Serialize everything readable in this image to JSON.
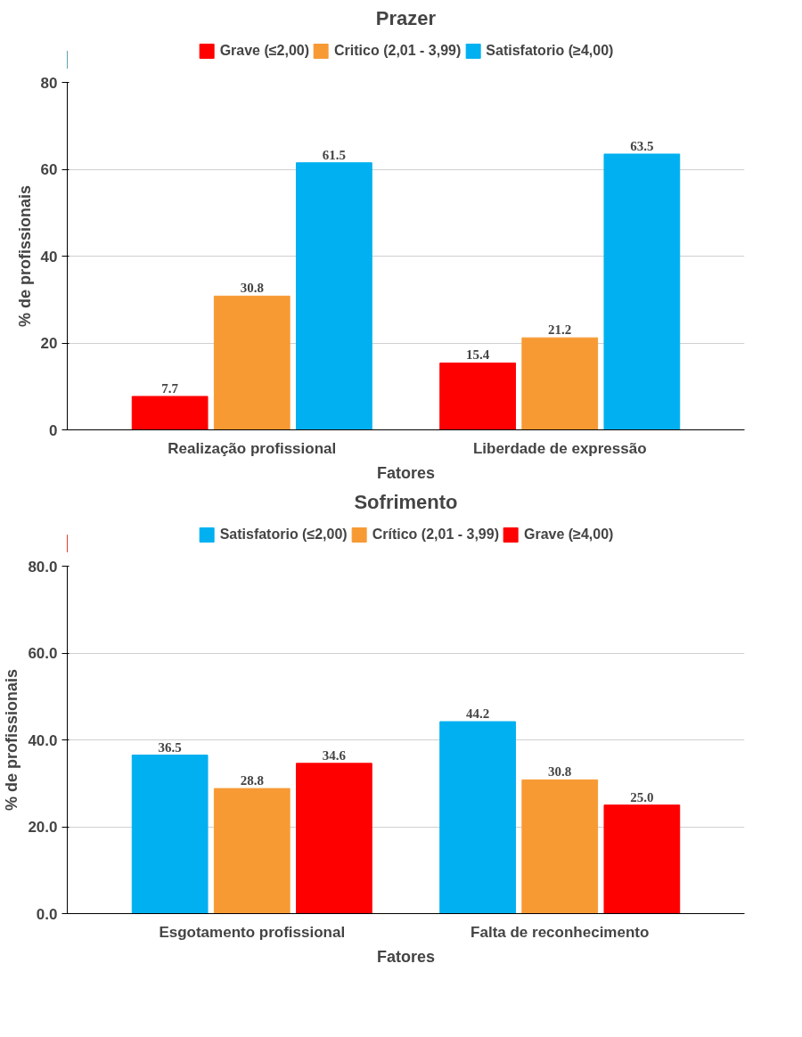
{
  "chart_data": [
    {
      "type": "bar",
      "title": "Prazer",
      "xlabel": "Fatores",
      "ylabel": "% de profissionais",
      "categories": [
        "Realização profissional",
        "Liberdade de expressão"
      ],
      "series": [
        {
          "name": "Grave (≤2,00)",
          "color": "#ff0000",
          "values": [
            7.7,
            15.4
          ]
        },
        {
          "name": "Critico (2,01 - 3,99)",
          "color": "#f79a34",
          "values": [
            30.8,
            21.2
          ]
        },
        {
          "name": "Satisfatorio (≥4,00)",
          "color": "#00b0f0",
          "values": [
            61.5,
            63.5
          ]
        }
      ],
      "ylim": [
        0,
        80
      ],
      "yticks": [
        0,
        20,
        40,
        60,
        80
      ],
      "grid": "y",
      "legend": "top",
      "data_labels": true
    },
    {
      "type": "bar",
      "title": "Sofrimento",
      "xlabel": "Fatores",
      "ylabel": "% de profissionais",
      "categories": [
        "Esgotamento profissional",
        "Falta de reconhecimento"
      ],
      "series": [
        {
          "name": "Satisfatorio (≤2,00)",
          "color": "#00b0f0",
          "values": [
            36.5,
            44.2
          ],
          "value_labels": [
            "36.5",
            "44.2"
          ]
        },
        {
          "name": "Crítico (2,01 - 3,99)",
          "color": "#f79a34",
          "values": [
            28.8,
            30.8
          ],
          "value_labels": [
            "28.8",
            "30.8"
          ]
        },
        {
          "name": "Grave (≥4,00)",
          "color": "#ff0000",
          "values": [
            34.6,
            25.0
          ],
          "value_labels": [
            "34.6",
            "25.0"
          ]
        }
      ],
      "ylim": [
        0,
        80
      ],
      "yticks": [
        {
          "value": 0,
          "label": "0.0"
        },
        {
          "value": 20,
          "label": "20.0"
        },
        {
          "value": 40,
          "label": "40.0"
        },
        {
          "value": 60,
          "label": "60.0"
        },
        {
          "value": 80,
          "label": "80.0"
        }
      ],
      "grid": "y",
      "legend": "top"
    }
  ]
}
